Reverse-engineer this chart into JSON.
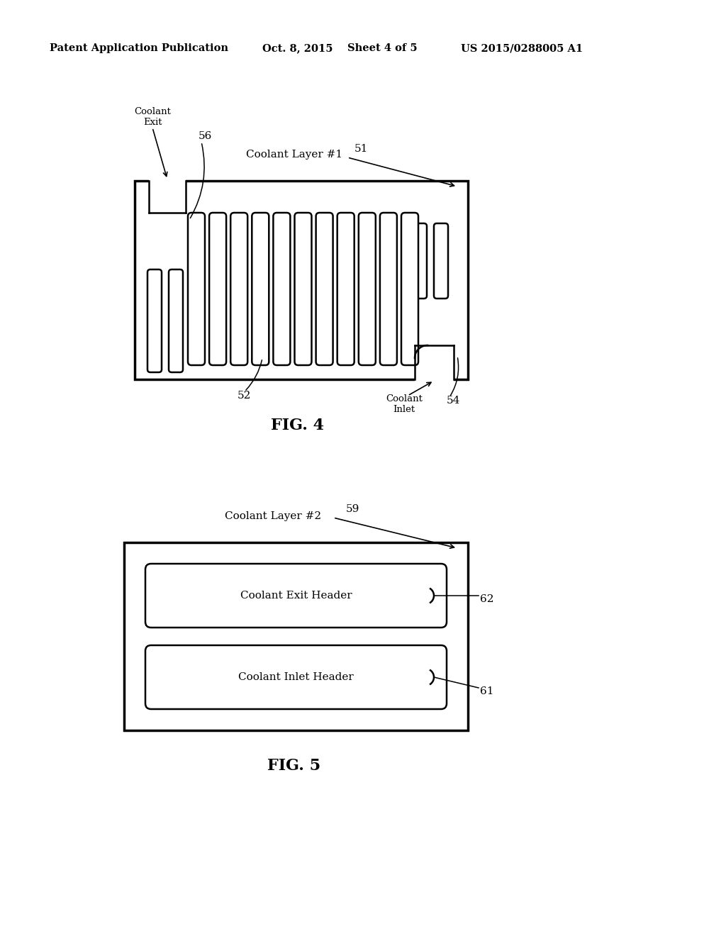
{
  "bg_color": "#ffffff",
  "text_color": "#000000",
  "line_color": "#000000",
  "header_text": "Patent Application Publication",
  "header_date": "Oct. 8, 2015",
  "header_sheet": "Sheet 4 of 5",
  "header_patent": "US 2015/0288005 A1",
  "fig4_label": "FIG. 4",
  "fig5_label": "FIG. 5",
  "fig4_title": "Coolant Layer #1",
  "fig5_title": "Coolant Layer #2",
  "label_51": "51",
  "label_52": "52",
  "label_54": "54",
  "label_56": "56",
  "label_59": "59",
  "label_61": "61",
  "label_62": "62",
  "coolant_exit_text": "Coolant\nExit",
  "coolant_inlet_text": "Coolant\nInlet",
  "coolant_exit_header_text": "Coolant Exit Header",
  "coolant_inlet_header_text": "Coolant Inlet Header",
  "lw": 1.8,
  "lw_thick": 2.5
}
